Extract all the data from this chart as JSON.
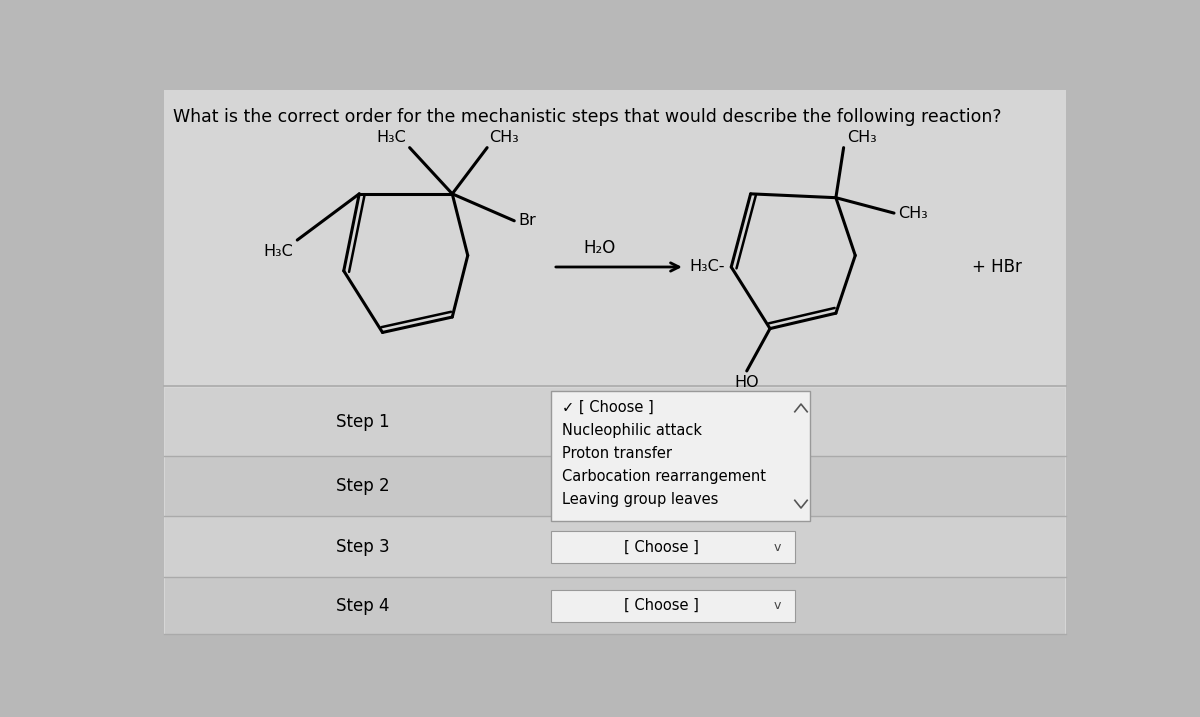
{
  "title": "What is the correct order for the mechanistic steps that would describe the following reaction?",
  "title_fontsize": 12.5,
  "bg_color": "#b8b8b8",
  "panel_bg": "#d4d4d4",
  "white": "#ffffff",
  "steps": [
    "Step 1",
    "Step 2",
    "Step 3",
    "Step 4"
  ],
  "dropdown_open_items": [
    "✓ [ Choose ]",
    "Nucleophilic attack",
    "Proton transfer",
    "Carbocation rearrangement",
    "Leaving group leaves"
  ],
  "dropdown_closed_label": "[ Choose ]",
  "H2O_label": "H₂O",
  "HBr_label": "+ HBr",
  "arrow_label": "→"
}
